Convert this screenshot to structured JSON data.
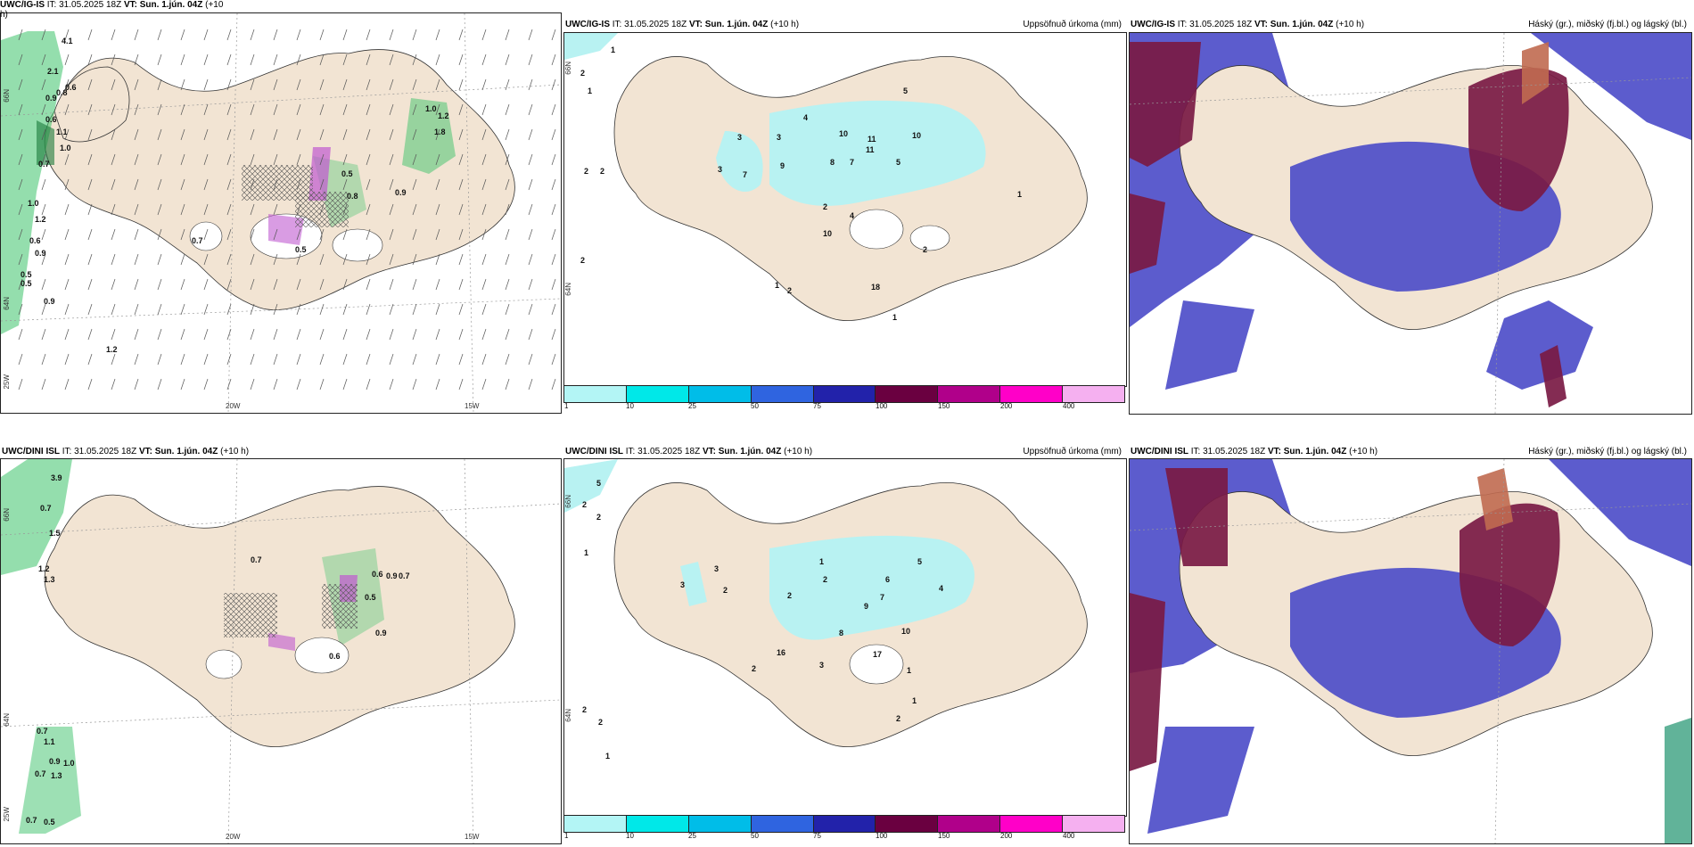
{
  "headers": {
    "r1c1": {
      "model": "UWC/IG-IS",
      "it": "IT: 31.05.2025 18Z",
      "vt": "VT: Sun. 1.jún. 04Z",
      "lead": "(+10",
      "lead2": "h)"
    },
    "r1c2": {
      "model": "UWC/IG-IS",
      "it": "IT: 31.05.2025 18Z",
      "vt": "VT: Sun. 1.jún. 04Z",
      "lead": "(+10 h)",
      "right": "Uppsöfnuð úrkoma (mm)"
    },
    "r1c3": {
      "model": "UWC/IG-IS",
      "it": "IT: 31.05.2025 18Z",
      "vt": "VT: Sun. 1.jún. 04Z",
      "lead": "(+10 h)",
      "right": "Háský (gr.), miðský (fj.bl.) og lágský (bl.)"
    },
    "r2c1": {
      "model": "UWC/DINI ISL",
      "it": "IT: 31.05.2025 18Z",
      "vt": "VT: Sun. 1.jún. 04Z",
      "lead": "(+10 h)"
    },
    "r2c2": {
      "model": "UWC/DINI ISL",
      "it": "IT: 31.05.2025 18Z",
      "vt": "VT: Sun. 1.jún. 04Z",
      "lead": "(+10 h)",
      "right": "Uppsöfnuð úrkoma (mm)"
    },
    "r2c3": {
      "model": "UWC/DINI ISL",
      "it": "IT: 31.05.2025 18Z",
      "vt": "VT: Sun. 1.jún. 04Z",
      "lead": "(+10 h)",
      "right": "Háský (gr.), miðský (fj.bl.) og lágský (bl.)"
    }
  },
  "axis_labels": {
    "lat66": "66N",
    "lat64": "64N",
    "lon25": "25W",
    "lon20": "20W",
    "lon15": "15W"
  },
  "colorbar": {
    "labels": [
      "1",
      "10",
      "25",
      "50",
      "75",
      "100",
      "150",
      "200",
      "400"
    ],
    "colors": [
      "#b3f5f5",
      "#00e8e8",
      "#00bde8",
      "#2f64e0",
      "#2222aa",
      "#6a0040",
      "#b0008a",
      "#ff00c8",
      "#f5b0f0"
    ]
  },
  "colors": {
    "land": "#f2e4d3",
    "precip": "#b8f2f2",
    "wind_green": "#3cc26a",
    "high_cloud": "#7a1a44",
    "mid_cloud": "#c06a50",
    "low_cloud": "#4a4ac8"
  },
  "gust_labels_r1": [
    "4.1",
    "2.1",
    "0.8",
    "0.6",
    "0.9",
    "0.6",
    "1.1",
    "1.0",
    "0.7",
    "1.0",
    "1.2",
    "0.6",
    "0.9",
    "0.5",
    "0.5",
    "0.9",
    "1.2",
    "0.7",
    "0.5",
    "0.8",
    "0.5",
    "0.9",
    "1.0",
    "1.2",
    "1.8"
  ],
  "gust_labels_r2": [
    "3.9",
    "0.7",
    "1.5",
    "1.2",
    "1.3",
    "0.7",
    "0.5",
    "0.6",
    "0.9",
    "0.7",
    "0.9",
    "0.7",
    "1.1",
    "0.9",
    "1.0",
    "0.7",
    "1.3",
    "0.7",
    "0.5",
    "0.6"
  ],
  "precip_labels_r1": [
    "1",
    "2",
    "1",
    "2",
    "2",
    "2",
    "3",
    "3",
    "7",
    "3",
    "9",
    "4",
    "10",
    "11",
    "11",
    "8",
    "7",
    "5",
    "10",
    "5",
    "2",
    "4",
    "2",
    "18",
    "1",
    "2",
    "10",
    "1",
    "1"
  ],
  "precip_labels_r2": [
    "5",
    "2",
    "2",
    "1",
    "3",
    "2",
    "2",
    "1",
    "2",
    "9",
    "7",
    "6",
    "5",
    "4",
    "8",
    "10",
    "17",
    "3",
    "2",
    "16",
    "3",
    "1",
    "2",
    "1",
    "2",
    "2",
    "1"
  ]
}
